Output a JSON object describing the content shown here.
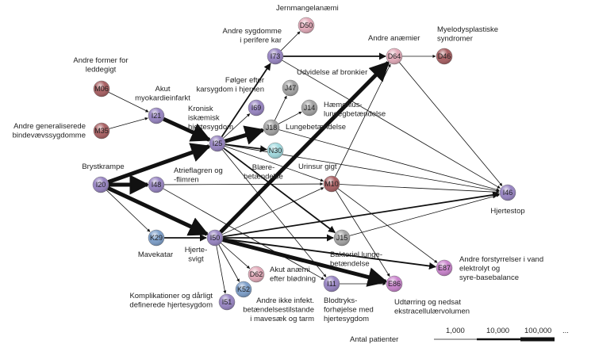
{
  "colors": {
    "purple": "#9784c2",
    "pink": "#e3aab9",
    "darkred": "#a85f62",
    "grey": "#a3a3a3",
    "blue": "#7d9fca",
    "cyan": "#a2dbe0",
    "magenta": "#c983cc"
  },
  "nodes": [
    {
      "id": "M06",
      "color": "darkred"
    },
    {
      "id": "M35",
      "color": "darkred"
    },
    {
      "id": "I21",
      "color": "purple"
    },
    {
      "id": "I25",
      "color": "purple"
    },
    {
      "id": "I73",
      "color": "purple"
    },
    {
      "id": "D50",
      "color": "pink"
    },
    {
      "id": "J47",
      "color": "grey"
    },
    {
      "id": "I69",
      "color": "purple"
    },
    {
      "id": "J14",
      "color": "grey"
    },
    {
      "id": "J18",
      "color": "grey"
    },
    {
      "id": "N30",
      "color": "cyan"
    },
    {
      "id": "D64",
      "color": "pink"
    },
    {
      "id": "D46",
      "color": "darkred"
    },
    {
      "id": "M10",
      "color": "darkred"
    },
    {
      "id": "I20",
      "color": "purple"
    },
    {
      "id": "I48",
      "color": "purple"
    },
    {
      "id": "K29",
      "color": "blue"
    },
    {
      "id": "I50",
      "color": "purple"
    },
    {
      "id": "J15",
      "color": "grey"
    },
    {
      "id": "I46",
      "color": "purple"
    },
    {
      "id": "E87",
      "color": "magenta"
    },
    {
      "id": "E86",
      "color": "magenta"
    },
    {
      "id": "I11",
      "color": "purple"
    },
    {
      "id": "D62",
      "color": "pink"
    },
    {
      "id": "K52",
      "color": "blue"
    },
    {
      "id": "I51",
      "color": "purple"
    }
  ],
  "edges": [
    [
      "M06",
      "I21",
      1
    ],
    [
      "M35",
      "I21",
      1
    ],
    [
      "I21",
      "I25",
      3
    ],
    [
      "I20",
      "I25",
      3
    ],
    [
      "I20",
      "I48",
      3
    ],
    [
      "I20",
      "K29",
      1
    ],
    [
      "I20",
      "I50",
      3
    ],
    [
      "K29",
      "I50",
      2
    ],
    [
      "I48",
      "M10",
      1
    ],
    [
      "I48",
      "I11",
      1
    ],
    [
      "I25",
      "I73",
      2
    ],
    [
      "I25",
      "I69",
      1
    ],
    [
      "I25",
      "J18",
      3
    ],
    [
      "I25",
      "N30",
      2
    ],
    [
      "I25",
      "M10",
      1
    ],
    [
      "I25",
      "J15",
      2
    ],
    [
      "I25",
      "I11",
      1
    ],
    [
      "I25",
      "I46",
      1
    ],
    [
      "J18",
      "J47",
      1
    ],
    [
      "J18",
      "J14",
      1
    ],
    [
      "J18",
      "I46",
      1
    ],
    [
      "I73",
      "D50",
      1
    ],
    [
      "I73",
      "D64",
      2
    ],
    [
      "I73",
      "I46",
      1
    ],
    [
      "D64",
      "D46",
      1
    ],
    [
      "D64",
      "I46",
      1
    ],
    [
      "I50",
      "D64",
      3
    ],
    [
      "I50",
      "M10",
      1
    ],
    [
      "I50",
      "J15",
      2
    ],
    [
      "I50",
      "I46",
      2
    ],
    [
      "I50",
      "E86",
      3
    ],
    [
      "I50",
      "E87",
      2
    ],
    [
      "I50",
      "D62",
      1
    ],
    [
      "I50",
      "K52",
      1
    ],
    [
      "I50",
      "I51",
      1
    ],
    [
      "M10",
      "D64",
      1
    ],
    [
      "M10",
      "I46",
      1
    ],
    [
      "M10",
      "E86",
      1
    ],
    [
      "M10",
      "E87",
      1
    ],
    [
      "J15",
      "I46",
      1
    ],
    [
      "I11",
      "E86",
      1
    ]
  ],
  "labels": [
    [
      "Jernmangelanæmi"
    ],
    [
      "Andre sygdomme",
      "i perifere kar"
    ],
    [
      "Andre anæmier"
    ],
    [
      "Myelodysplastiske",
      "syndromer"
    ],
    [
      "Andre former for",
      "leddegigt"
    ],
    [
      "Akut",
      "myokardieinfarkt"
    ],
    [
      "Følger efter",
      "karsygdom i hjernen"
    ],
    [
      "Udvidelse af bronkier"
    ],
    [
      "Kronisk",
      "iskæmisk",
      "hjertesygdom"
    ],
    [
      "Hæmofilus-",
      "lungegbetændelse"
    ],
    [
      "Andre generaliserede",
      "bindevævssygdomme"
    ],
    [
      "Lungebetændelse"
    ],
    [
      "Brystkrampe"
    ],
    [
      "Blære-",
      "betændelse"
    ],
    [
      "Urinsur gigt"
    ],
    [
      "Atrieflagren og",
      "-flimren"
    ],
    [
      "Hjertestop"
    ],
    [
      "Mavekatar"
    ],
    [
      "Hjerte-",
      "svigt"
    ],
    [
      "Bakteriel lunge-",
      "betændelse"
    ],
    [
      "Andre forstyrrelser i vand",
      "elektrolyt og",
      "syre-basebalance"
    ],
    [
      "Akut anæmi",
      "efter blødning"
    ],
    [
      "Komplikationer og dårligt",
      "definerede hjertesygdom"
    ],
    [
      "Andre ikke infekt.",
      "betændelsestilstande",
      "i mavesæk og tarm"
    ],
    [
      "Blodtryks-",
      "forhøjelse med",
      "hjertesygdom"
    ],
    [
      "Udtørring og nedsat",
      "ekstracellulærvolumen"
    ]
  ],
  "legend": {
    "title": "Antal patienter",
    "ticks": [
      "1,000",
      "10,000",
      "100,000",
      "..."
    ]
  }
}
